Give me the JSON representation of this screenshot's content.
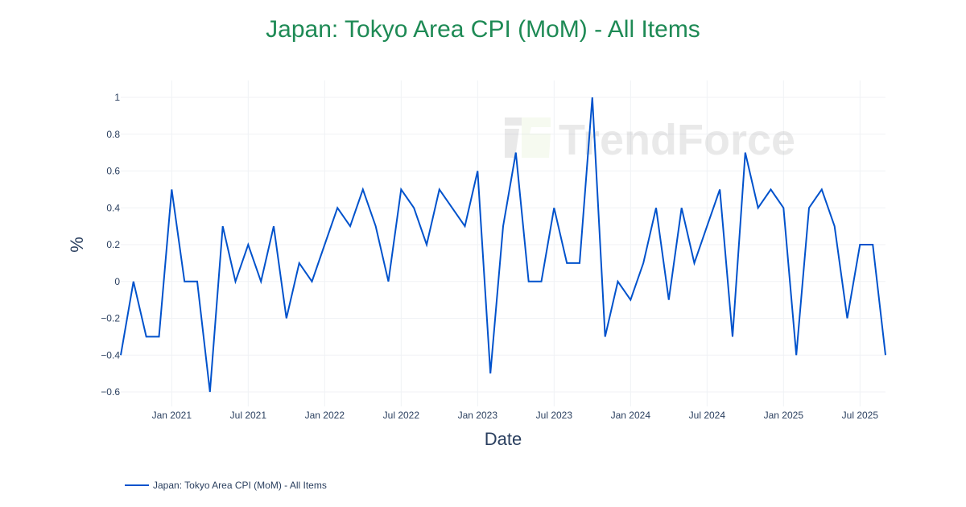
{
  "title": "Japan: Tokyo Area CPI (MoM) - All Items",
  "colors": {
    "title": "#1e8a55",
    "line": "#0052cc",
    "grid": "#f0f2f5",
    "text": "#2a3f5f"
  },
  "watermark": "TrendForce",
  "legend": {
    "label": "Japan: Tokyo Area CPI (MoM) - All Items"
  },
  "chart_data": {
    "type": "line",
    "title": "Japan: Tokyo Area CPI (MoM) - All Items",
    "xlabel": "Date",
    "ylabel": "%",
    "ylim": [
      -0.68,
      1.09
    ],
    "yticks": [
      1,
      0.8,
      0.6,
      0.4,
      0.2,
      0,
      -0.2,
      -0.4,
      -0.6
    ],
    "ytick_labels": [
      "1",
      "0.8",
      "0.6",
      "0.4",
      "0.2",
      "0",
      "−0.2",
      "−0.4",
      "−0.6"
    ],
    "xtick_labels": [
      "Jan 2021",
      "Jul 2021",
      "Jan 2022",
      "Jul 2022",
      "Jan 2023",
      "Jul 2023",
      "Jan 2024",
      "Jul 2024",
      "Jan 2025",
      "Jul 2025"
    ],
    "grid": true,
    "legend_position": "bottom-left",
    "x": [
      "2020-09",
      "2020-10",
      "2020-11",
      "2020-12",
      "2021-01",
      "2021-02",
      "2021-03",
      "2021-04",
      "2021-05",
      "2021-06",
      "2021-07",
      "2021-08",
      "2021-09",
      "2021-10",
      "2021-11",
      "2021-12",
      "2022-01",
      "2022-02",
      "2022-03",
      "2022-04",
      "2022-05",
      "2022-06",
      "2022-07",
      "2022-08",
      "2022-09",
      "2022-10",
      "2022-11",
      "2022-12",
      "2023-01",
      "2023-02",
      "2023-03",
      "2023-04",
      "2023-05",
      "2023-06",
      "2023-07",
      "2023-08",
      "2023-09",
      "2023-10",
      "2023-11",
      "2023-12",
      "2024-01",
      "2024-02",
      "2024-03",
      "2024-04",
      "2024-05",
      "2024-06",
      "2024-07",
      "2024-08",
      "2024-09",
      "2024-10",
      "2024-11",
      "2024-12",
      "2025-01",
      "2025-02",
      "2025-03",
      "2025-04",
      "2025-05",
      "2025-06",
      "2025-07",
      "2025-08",
      "2025-09"
    ],
    "series": [
      {
        "name": "Japan: Tokyo Area CPI (MoM) - All Items",
        "values": [
          -0.4,
          0,
          -0.3,
          -0.3,
          0.5,
          0,
          0,
          -0.6,
          0.3,
          0,
          0.2,
          0,
          0.3,
          -0.2,
          0.1,
          0,
          0.2,
          0.4,
          0.3,
          0.5,
          0.3,
          0,
          0.5,
          0.4,
          0.2,
          0.5,
          0.4,
          0.3,
          0.6,
          -0.5,
          0.3,
          0.7,
          0,
          0,
          0.4,
          0.1,
          0.1,
          1.0,
          -0.3,
          0,
          -0.1,
          0.1,
          0.4,
          -0.1,
          0.4,
          0.1,
          0.3,
          0.5,
          -0.3,
          0.7,
          0.4,
          0.5,
          0.4,
          -0.4,
          0.4,
          0.5,
          0.3,
          -0.2,
          0.2,
          0.2,
          -0.4
        ]
      }
    ]
  }
}
